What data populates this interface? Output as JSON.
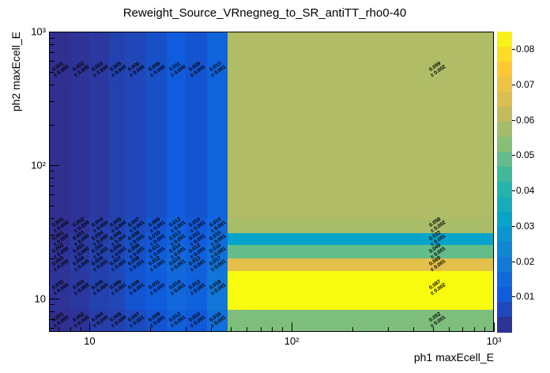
{
  "chart_data": {
    "type": "heatmap",
    "title": "Reweight_Source_VRnegneg_to_SR_antiTT_rho0-40",
    "xlabel": "ph1 maxEcell_E",
    "ylabel": "ph2 maxEcell_E",
    "x_scale": "log",
    "y_scale": "log",
    "grid": false,
    "x_range": [
      6.3,
      1000
    ],
    "y_range": [
      5.6,
      1000
    ],
    "z_range": [
      0,
      0.085
    ],
    "x_ticks": [
      {
        "v": 10,
        "label": "10"
      },
      {
        "v": 100,
        "label": "10²"
      },
      {
        "v": 1000,
        "label": "10³"
      }
    ],
    "y_ticks": [
      {
        "v": 10,
        "label": "10"
      },
      {
        "v": 100,
        "label": "10²"
      },
      {
        "v": 1000,
        "label": "10³"
      }
    ],
    "x_edges": [
      6.3,
      8,
      10,
      12.5,
      15,
      19,
      24,
      30,
      38,
      48,
      1000
    ],
    "rows": [
      {
        "y": [
          5.6,
          8.2
        ],
        "cells": [
          [
            "0.001",
            "0.000"
          ],
          [
            "0.002",
            "0.000"
          ],
          [
            "0.004",
            "0.000"
          ],
          [
            "0.005",
            "0.000"
          ],
          [
            "0.007",
            "0.001"
          ],
          [
            "0.009",
            "0.001"
          ],
          [
            "0.012",
            "0.001"
          ],
          [
            "0.010",
            "0.001"
          ],
          [
            "0.016",
            "0.001"
          ],
          [
            "0.052",
            "0.001"
          ]
        ]
      },
      {
        "y": [
          8.2,
          16
        ],
        "cells": [
          [
            "0.002",
            "0.000"
          ],
          [
            "0.003",
            "0.000"
          ],
          [
            "0.005",
            "0.000"
          ],
          [
            "0.006",
            "0.001"
          ],
          [
            "0.009",
            "0.001"
          ],
          [
            "0.011",
            "0.001"
          ],
          [
            "0.014",
            "0.001"
          ],
          [
            "0.012",
            "0.001"
          ],
          [
            "0.018",
            "0.001"
          ],
          [
            "0.087",
            "0.002"
          ]
        ]
      },
      {
        "y": [
          16,
          20
        ],
        "cells": [
          [
            "0.002",
            "0.000"
          ],
          [
            "0.004",
            "0.000"
          ],
          [
            "0.005",
            "0.001"
          ],
          [
            "0.007",
            "0.001"
          ],
          [
            "0.009",
            "0.001"
          ],
          [
            "0.012",
            "0.001"
          ],
          [
            "0.015",
            "0.001"
          ],
          [
            "0.013",
            "0.001"
          ],
          [
            "0.017",
            "0.001"
          ],
          [
            "0.068",
            "0.001"
          ]
        ]
      },
      {
        "y": [
          20,
          25
        ],
        "cells": [
          [
            "0.002",
            "0.000"
          ],
          [
            "0.003",
            "0.000"
          ],
          [
            "0.005",
            "0.001"
          ],
          [
            "0.006",
            "0.001"
          ],
          [
            "0.008",
            "0.001"
          ],
          [
            "0.011",
            "0.001"
          ],
          [
            "0.014",
            "0.001"
          ],
          [
            "0.012",
            "0.001"
          ],
          [
            "0.016",
            "0.001"
          ],
          [
            "0.049",
            "0.001"
          ]
        ]
      },
      {
        "y": [
          25,
          31
        ],
        "cells": [
          [
            "0.001",
            "0.000"
          ],
          [
            "0.003",
            "0.000"
          ],
          [
            "0.004",
            "0.000"
          ],
          [
            "0.006",
            "0.001"
          ],
          [
            "0.008",
            "0.001"
          ],
          [
            "0.010",
            "0.001"
          ],
          [
            "0.013",
            "0.001"
          ],
          [
            "0.011",
            "0.001"
          ],
          [
            "0.015",
            "0.001"
          ],
          [
            "0.032",
            "0.001"
          ]
        ]
      },
      {
        "y": [
          31,
          40
        ],
        "cells": [
          [
            "0.001",
            "0.000"
          ],
          [
            "0.002",
            "0.000"
          ],
          [
            "0.004",
            "0.000"
          ],
          [
            "0.005",
            "0.000"
          ],
          [
            "0.007",
            "0.001"
          ],
          [
            "0.009",
            "0.001"
          ],
          [
            "0.012",
            "0.001"
          ],
          [
            "0.010",
            "0.001"
          ],
          [
            "0.014",
            "0.001"
          ],
          [
            "0.058",
            "0.002"
          ]
        ]
      },
      {
        "y": [
          40,
          1000
        ],
        "cells": [
          [
            "0.001",
            "0.000"
          ],
          [
            "0.002",
            "0.000"
          ],
          [
            "0.003",
            "0.000"
          ],
          [
            "0.005",
            "0.000"
          ],
          [
            "0.006",
            "0.000"
          ],
          [
            "0.008",
            "0.000"
          ],
          [
            "0.011",
            "0.000"
          ],
          [
            "0.009",
            "0.001"
          ],
          [
            "0.013",
            "0.001"
          ],
          [
            "0.059",
            "0.002"
          ]
        ]
      }
    ],
    "palette": [
      "#352a87",
      "#0f5cdd",
      "#1480d6",
      "#06a4ca",
      "#2eb7a4",
      "#87bf77",
      "#d1bb59",
      "#fec832",
      "#f9fb0e"
    ],
    "colorbar": {
      "steps": 20,
      "ticks": [
        {
          "v": 0.01,
          "label": "0.01"
        },
        {
          "v": 0.02,
          "label": "0.02"
        },
        {
          "v": 0.03,
          "label": "0.03"
        },
        {
          "v": 0.04,
          "label": "0.04"
        },
        {
          "v": 0.05,
          "label": "0.05"
        },
        {
          "v": 0.06,
          "label": "0.06"
        },
        {
          "v": 0.07,
          "label": "0.07"
        },
        {
          "v": 0.08,
          "label": "0.08"
        }
      ]
    }
  }
}
